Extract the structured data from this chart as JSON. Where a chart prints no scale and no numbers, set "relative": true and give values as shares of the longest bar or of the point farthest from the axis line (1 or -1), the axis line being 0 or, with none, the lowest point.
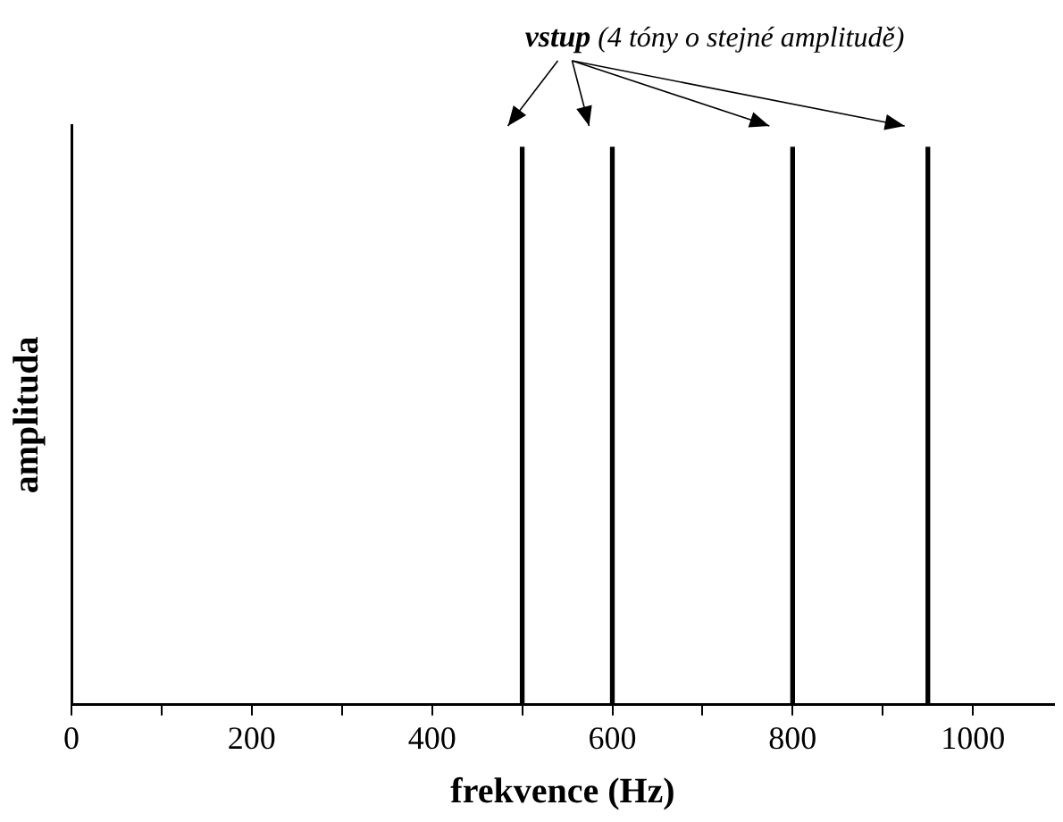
{
  "chart_data": {
    "type": "bar",
    "relative": true,
    "xlabel": "frekvence (Hz)",
    "ylabel": "amplituda",
    "x": [
      500,
      600,
      800,
      950
    ],
    "series": [
      {
        "color": "#000000",
        "values": [
          1,
          1,
          1,
          1
        ]
      }
    ],
    "xlim": [
      0,
      1090
    ],
    "xticks": [
      0,
      {
        "value": 100,
        "label": null
      },
      200,
      {
        "value": 300,
        "label": null
      },
      400,
      {
        "value": 500,
        "label": null
      },
      600,
      {
        "value": 700,
        "label": null
      },
      800,
      {
        "value": 900,
        "label": null
      },
      1000
    ],
    "tick_labels": "x",
    "grid": false,
    "legend": false,
    "annotations": [
      "vstup (4 tóny o stejné amplitudě)"
    ]
  }
}
